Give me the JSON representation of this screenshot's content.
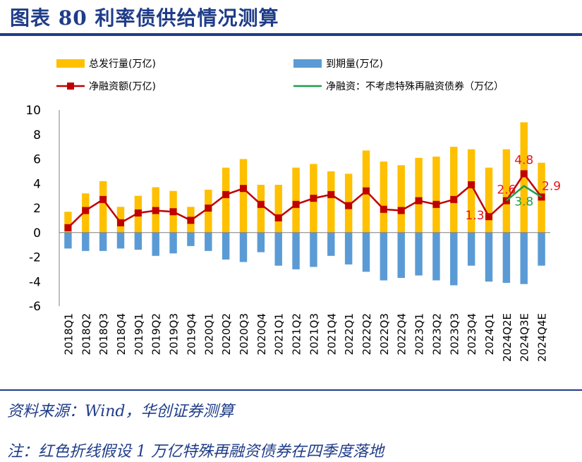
{
  "header": {
    "title": "图表 80    利率债供给情况测算"
  },
  "footer": {
    "source": "资料来源：Wind，华创证券测算",
    "note": "注：红色折线假设 1 万亿特殊再融资债券在四季度落地"
  },
  "colors": {
    "issuance": "#ffc000",
    "maturity": "#5b9bd5",
    "net": "#c00000",
    "net_ex": "#1f9e4a",
    "label_red": "#e8141d",
    "label_green": "#1f9e4a",
    "title_blue": "#1f3c88"
  },
  "chart_data": {
    "type": "bar",
    "title": "",
    "xlabel": "",
    "ylabel": "",
    "ylim": [
      -6,
      10
    ],
    "yticks": [
      "10",
      "8",
      "6",
      "4",
      "2",
      "0",
      "-2",
      "-4",
      "-6"
    ],
    "categories": [
      "2018Q1",
      "2018Q2",
      "2018Q3",
      "2018Q4",
      "2019Q1",
      "2019Q2",
      "2019Q3",
      "2019Q4",
      "2020Q1",
      "2020Q2",
      "2020Q3",
      "2020Q4",
      "2021Q1",
      "2021Q2",
      "2021Q3",
      "2021Q4",
      "2022Q1",
      "2022Q2",
      "2022Q3",
      "2022Q4",
      "2023Q1",
      "2023Q2",
      "2023Q3",
      "2023Q4",
      "2024Q1",
      "2024Q2E",
      "2024Q3E",
      "2024Q4E"
    ],
    "series": [
      {
        "name": "总发行量(万亿)",
        "kind": "bar",
        "values": [
          1.7,
          3.2,
          4.2,
          2.1,
          3.0,
          3.7,
          3.4,
          2.1,
          3.5,
          5.3,
          6.0,
          3.9,
          3.9,
          5.3,
          5.6,
          5.0,
          4.8,
          6.7,
          5.8,
          5.5,
          6.1,
          6.2,
          7.0,
          6.8,
          5.3,
          6.8,
          9.0,
          5.7
        ]
      },
      {
        "name": "到期量(万亿)",
        "kind": "bar",
        "values": [
          -1.3,
          -1.5,
          -1.5,
          -1.3,
          -1.4,
          -1.9,
          -1.7,
          -1.1,
          -1.5,
          -2.2,
          -2.4,
          -1.6,
          -2.7,
          -3.0,
          -2.8,
          -1.9,
          -2.6,
          -3.2,
          -3.9,
          -3.7,
          -3.5,
          -3.9,
          -4.3,
          -2.7,
          -4.0,
          -4.1,
          -4.2,
          -2.7
        ]
      },
      {
        "name": "净融资额(万亿)",
        "kind": "line",
        "values": [
          0.4,
          1.8,
          2.7,
          0.8,
          1.6,
          1.8,
          1.7,
          1.0,
          2.0,
          3.1,
          3.6,
          2.3,
          1.2,
          2.3,
          2.8,
          3.1,
          2.2,
          3.4,
          1.9,
          1.8,
          2.6,
          2.3,
          2.7,
          3.9,
          1.3,
          2.6,
          4.8,
          2.9
        ]
      },
      {
        "name": "净融资：不考虑特殊再融资债券（万亿）",
        "kind": "line",
        "values": [
          null,
          null,
          null,
          null,
          null,
          null,
          null,
          null,
          null,
          null,
          null,
          null,
          null,
          null,
          null,
          null,
          null,
          null,
          null,
          null,
          null,
          null,
          null,
          null,
          null,
          2.6,
          3.8,
          2.9
        ]
      }
    ],
    "data_labels": [
      {
        "text": "1.3",
        "index": 24,
        "value": 1.3,
        "color": "red"
      },
      {
        "text": "2.6",
        "index": 25,
        "value": 2.6,
        "color": "red"
      },
      {
        "text": "4.8",
        "index": 26,
        "value": 4.8,
        "color": "red"
      },
      {
        "text": "2.9",
        "index": 27,
        "value": 2.9,
        "color": "red"
      },
      {
        "text": "3.8",
        "index": 26,
        "value": 3.8,
        "color": "green"
      }
    ]
  }
}
